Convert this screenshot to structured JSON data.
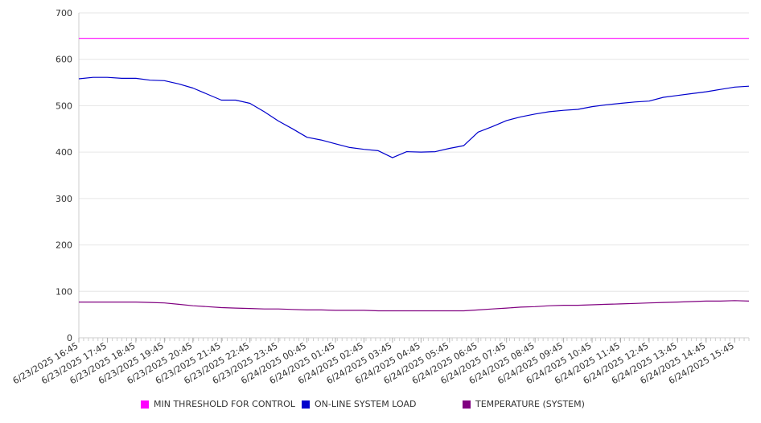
{
  "chart_data": {
    "type": "line",
    "title": "",
    "xlabel": "",
    "ylabel": "",
    "ylim": [
      0,
      700
    ],
    "yticks": [
      0,
      100,
      200,
      300,
      400,
      500,
      600,
      700
    ],
    "grid": true,
    "legend_position": "bottom",
    "x_tick_labels": [
      "6/23/2025 16:45",
      "6/23/2025 17:45",
      "6/23/2025 18:45",
      "6/23/2025 19:45",
      "6/23/2025 20:45",
      "6/23/2025 21:45",
      "6/23/2025 22:45",
      "6/23/2025 23:45",
      "6/24/2025 00:45",
      "6/24/2025 01:45",
      "6/24/2025 02:45",
      "6/24/2025 03:45",
      "6/24/2025 04:45",
      "6/24/2025 05:45",
      "6/24/2025 06:45",
      "6/24/2025 07:45",
      "6/24/2025 08:45",
      "6/24/2025 09:45",
      "6/24/2025 10:45",
      "6/24/2025 11:45",
      "6/24/2025 12:45",
      "6/24/2025 13:45",
      "6/24/2025 14:45",
      "6/24/2025 15:45"
    ],
    "x": [
      "6/23/2025 16:45",
      "6/23/2025 17:15",
      "6/23/2025 17:45",
      "6/23/2025 18:15",
      "6/23/2025 18:45",
      "6/23/2025 19:15",
      "6/23/2025 19:45",
      "6/23/2025 20:15",
      "6/23/2025 20:45",
      "6/23/2025 21:15",
      "6/23/2025 21:45",
      "6/23/2025 22:15",
      "6/23/2025 22:45",
      "6/23/2025 23:15",
      "6/23/2025 23:45",
      "6/24/2025 00:15",
      "6/24/2025 00:45",
      "6/24/2025 01:15",
      "6/24/2025 01:45",
      "6/24/2025 02:15",
      "6/24/2025 02:45",
      "6/24/2025 03:15",
      "6/24/2025 03:45",
      "6/24/2025 04:15",
      "6/24/2025 04:45",
      "6/24/2025 05:15",
      "6/24/2025 05:45",
      "6/24/2025 06:15",
      "6/24/2025 06:45",
      "6/24/2025 07:15",
      "6/24/2025 07:45",
      "6/24/2025 08:15",
      "6/24/2025 08:45",
      "6/24/2025 09:15",
      "6/24/2025 09:45",
      "6/24/2025 10:15",
      "6/24/2025 10:45",
      "6/24/2025 11:15",
      "6/24/2025 11:45",
      "6/24/2025 12:15",
      "6/24/2025 12:45",
      "6/24/2025 13:15",
      "6/24/2025 13:45",
      "6/24/2025 14:15",
      "6/24/2025 14:45",
      "6/24/2025 15:15",
      "6/24/2025 15:45",
      "6/24/2025 16:15"
    ],
    "series": [
      {
        "name": "MIN THRESHOLD FOR CONTROL",
        "color": "#ff00ff",
        "values": [
          645,
          645,
          645,
          645,
          645,
          645,
          645,
          645,
          645,
          645,
          645,
          645,
          645,
          645,
          645,
          645,
          645,
          645,
          645,
          645,
          645,
          645,
          645,
          645,
          645,
          645,
          645,
          645,
          645,
          645,
          645,
          645,
          645,
          645,
          645,
          645,
          645,
          645,
          645,
          645,
          645,
          645,
          645,
          645,
          645,
          645,
          645,
          645
        ]
      },
      {
        "name": "ON-LINE SYSTEM LOAD",
        "color": "#0000cc",
        "values": [
          558,
          561,
          561,
          559,
          559,
          555,
          554,
          547,
          538,
          525,
          512,
          512,
          505,
          487,
          467,
          450,
          432,
          426,
          418,
          410,
          406,
          403,
          388,
          401,
          400,
          401,
          408,
          414,
          443,
          455,
          468,
          476,
          482,
          487,
          490,
          492,
          498,
          502,
          505,
          508,
          510,
          518,
          522,
          526,
          530,
          535,
          540,
          542
        ]
      },
      {
        "name": "TEMPERATURE (SYSTEM)",
        "color": "#800080",
        "values": [
          77,
          77,
          77,
          77,
          77,
          76,
          75,
          72,
          69,
          67,
          65,
          64,
          63,
          62,
          62,
          61,
          60,
          60,
          59,
          59,
          59,
          58,
          58,
          58,
          58,
          58,
          58,
          58,
          60,
          62,
          64,
          66,
          67,
          69,
          70,
          70,
          71,
          72,
          73,
          74,
          75,
          76,
          77,
          78,
          79,
          79,
          80,
          79
        ]
      }
    ]
  }
}
